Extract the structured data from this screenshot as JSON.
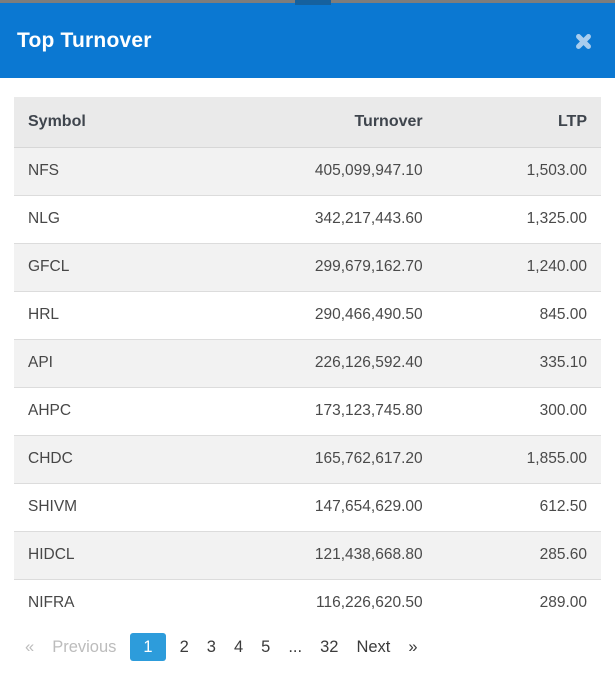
{
  "modal": {
    "title": "Top Turnover",
    "close_icon": "x-cross"
  },
  "colors": {
    "header_blue": "#0b78d2",
    "close_icon_blue": "#a9cdee",
    "active_page_blue": "#2d9cdb",
    "table_header_bg": "#eaeaea",
    "stripe_row_bg": "#f2f2f2",
    "disabled_text": "#bcbcbc",
    "body_text": "#4a4a4a"
  },
  "table": {
    "columns": [
      "Symbol",
      "Turnover",
      "LTP"
    ],
    "rows": [
      {
        "symbol": "NFS",
        "turnover": "405,099,947.10",
        "ltp": "1,503.00"
      },
      {
        "symbol": "NLG",
        "turnover": "342,217,443.60",
        "ltp": "1,325.00"
      },
      {
        "symbol": "GFCL",
        "turnover": "299,679,162.70",
        "ltp": "1,240.00"
      },
      {
        "symbol": "HRL",
        "turnover": "290,466,490.50",
        "ltp": "845.00"
      },
      {
        "symbol": "API",
        "turnover": "226,126,592.40",
        "ltp": "335.10"
      },
      {
        "symbol": "AHPC",
        "turnover": "173,123,745.80",
        "ltp": "300.00"
      },
      {
        "symbol": "CHDC",
        "turnover": "165,762,617.20",
        "ltp": "1,855.00"
      },
      {
        "symbol": "SHIVM",
        "turnover": "147,654,629.00",
        "ltp": "612.50"
      },
      {
        "symbol": "HIDCL",
        "turnover": "121,438,668.80",
        "ltp": "285.60"
      },
      {
        "symbol": "NIFRA",
        "turnover": "116,226,620.50",
        "ltp": "289.00"
      }
    ]
  },
  "pagination": {
    "active_page": "1",
    "total_pages": "32",
    "items": [
      {
        "label": "«",
        "state": "disabled",
        "name": "prev-arrow",
        "interactable": true
      },
      {
        "label": "Previous",
        "state": "disabled",
        "name": "prev-button",
        "interactable": true
      },
      {
        "label": "1",
        "state": "active",
        "name": "page-1",
        "interactable": true
      },
      {
        "label": "2",
        "state": "normal",
        "name": "page-2",
        "interactable": true
      },
      {
        "label": "3",
        "state": "normal",
        "name": "page-3",
        "interactable": true
      },
      {
        "label": "4",
        "state": "normal",
        "name": "page-4",
        "interactable": true
      },
      {
        "label": "5",
        "state": "normal",
        "name": "page-5",
        "interactable": true
      },
      {
        "label": "...",
        "state": "normal",
        "name": "pages-ellipsis",
        "interactable": false
      },
      {
        "label": "32",
        "state": "normal",
        "name": "page-32",
        "interactable": true
      },
      {
        "label": "Next",
        "state": "normal",
        "name": "next-button",
        "interactable": true
      },
      {
        "label": "»",
        "state": "normal",
        "name": "next-arrow",
        "interactable": true
      }
    ]
  }
}
